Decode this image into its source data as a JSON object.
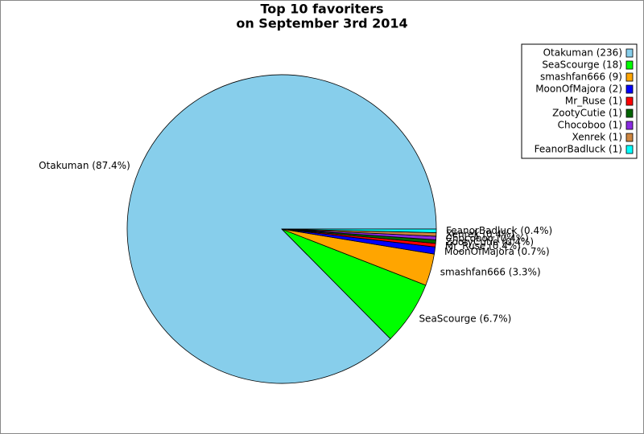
{
  "chart_data": {
    "type": "pie",
    "title": [
      "Top 10 favoriters",
      "on September 3rd 2014"
    ],
    "legend_labels": [
      "Otakuman (236)",
      "SeaScourge (18)",
      "smashfan666 (9)",
      "MoonOfMajora (2)",
      "Mr_Ruse (1)",
      "ZootyCutie (1)",
      "Chocoboo (1)",
      "Xenrek (1)",
      "FeanorBadluck (1)"
    ],
    "values": [
      236,
      18,
      9,
      2,
      1,
      1,
      1,
      1,
      1
    ],
    "value_labels": [
      "Otakuman (87.4%)",
      "SeaScourge (6.7%)",
      "smashfan666 (3.3%)",
      "MoonOfMajora (0.7%)",
      "Mr_Ruse (0.4%)",
      "ZootyCutie (0.4%)",
      "Chocoboo (0.4%)",
      "Xenrek (0.4%)",
      "FeanorBadluck (0.4%)"
    ],
    "colors": [
      "#87ceeb",
      "#00ff00",
      "#ffa500",
      "#0000ff",
      "#ff0000",
      "#006400",
      "#8a2be2",
      "#cd853f",
      "#00ffff"
    ],
    "legend": "top-right"
  }
}
